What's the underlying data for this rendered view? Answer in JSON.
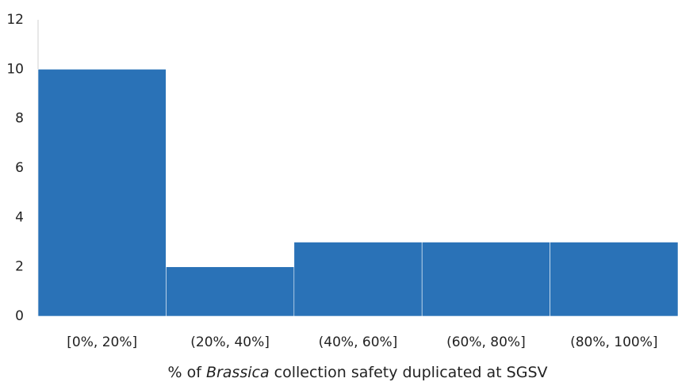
{
  "chart_data": {
    "type": "bar",
    "categories": [
      "[0%, 20%]",
      "(20%, 40%]",
      "(40%, 60%]",
      "(60%, 80%]",
      "(80%, 100%]"
    ],
    "values": [
      10,
      2,
      3,
      3,
      3
    ],
    "color": "#2a72b7",
    "ylim": [
      0,
      12
    ],
    "yticks": [
      0,
      2,
      4,
      6,
      8,
      10,
      12
    ],
    "x_label": [
      "% of ",
      "Brassica",
      " collection safety duplicated at SGSV"
    ],
    "grid": false
  }
}
